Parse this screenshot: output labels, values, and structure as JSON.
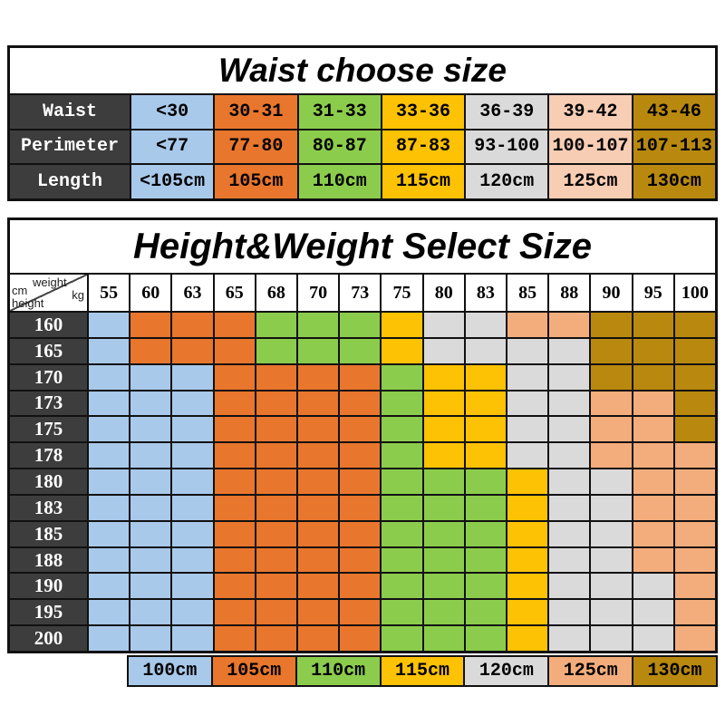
{
  "colors": {
    "blue": "#a9c9ea",
    "orange": "#e8762d",
    "green": "#8ccc4c",
    "yellow": "#fcc203",
    "gray": "#dadada",
    "peach": "#f3ad7c",
    "peach_light": "#f7cdb4",
    "gold": "#b8890e",
    "label_bg": "#3d3d3d",
    "border": "#111111"
  },
  "waist_table": {
    "title": "Waist choose size",
    "column_colors": [
      "blue",
      "orange",
      "green",
      "yellow",
      "gray",
      "peach_light",
      "gold"
    ],
    "rows": [
      {
        "label": "Waist",
        "values": [
          "<30",
          "30-31",
          "31-33",
          "33-36",
          "36-39",
          "39-42",
          "43-46"
        ]
      },
      {
        "label": "Perimeter",
        "values": [
          "<77",
          "77-80",
          "80-87",
          "87-83",
          "93-100",
          "100-107",
          "107-113"
        ]
      },
      {
        "label": "Length",
        "values": [
          "<105cm",
          "105cm",
          "110cm",
          "115cm",
          "120cm",
          "125cm",
          "130cm"
        ]
      }
    ]
  },
  "size_table": {
    "title": "Height&Weight Select Size",
    "corner": {
      "weight": "weight",
      "kg": "kg",
      "cm": "cm",
      "height": "height"
    },
    "weights": [
      "55",
      "60",
      "63",
      "65",
      "68",
      "70",
      "73",
      "75",
      "80",
      "83",
      "85",
      "88",
      "90",
      "95",
      "100"
    ],
    "code_map": {
      "B": "blue",
      "O": "orange",
      "G": "green",
      "Y": "yellow",
      "S": "gray",
      "P": "peach",
      "D": "gold"
    },
    "rows": [
      {
        "height": "160",
        "cells": "BOOOGGGYSSPPDDD"
      },
      {
        "height": "165",
        "cells": "BOOOGGGYSSSSDDD"
      },
      {
        "height": "170",
        "cells": "BBBOOOOGYYSSDDD"
      },
      {
        "height": "173",
        "cells": "BBBOOOOGYYSSPPD"
      },
      {
        "height": "175",
        "cells": "BBBOOOOGYYSSPPD"
      },
      {
        "height": "178",
        "cells": "BBBOOOOGYYSSPPP"
      },
      {
        "height": "180",
        "cells": "BBBOOOOGGGYSSPP"
      },
      {
        "height": "183",
        "cells": "BBBOOOOGGGYSSPP"
      },
      {
        "height": "185",
        "cells": "BBBOOOOGGGYSSPP"
      },
      {
        "height": "188",
        "cells": "BBBOOOOGGGYSSPP"
      },
      {
        "height": "190",
        "cells": "BBBOOOOGGGYSSSP"
      },
      {
        "height": "195",
        "cells": "BBBOOOOGGGYSSSP"
      },
      {
        "height": "200",
        "cells": "BBBOOOOGGGYSSSP"
      }
    ]
  },
  "legend": {
    "items": [
      {
        "label": "100cm",
        "color": "blue"
      },
      {
        "label": "105cm",
        "color": "orange"
      },
      {
        "label": "110cm",
        "color": "green"
      },
      {
        "label": "115cm",
        "color": "yellow"
      },
      {
        "label": "120cm",
        "color": "gray"
      },
      {
        "label": "125cm",
        "color": "peach"
      },
      {
        "label": "130cm",
        "color": "gold"
      }
    ]
  },
  "chart_data": [
    {
      "type": "table",
      "title": "Waist choose size",
      "rows": [
        [
          "Waist",
          "<30",
          "30-31",
          "31-33",
          "33-36",
          "36-39",
          "39-42",
          "43-46"
        ],
        [
          "Perimeter",
          "<77",
          "77-80",
          "80-87",
          "87-83",
          "93-100",
          "100-107",
          "107-113"
        ],
        [
          "Length",
          "<105cm",
          "105cm",
          "110cm",
          "115cm",
          "120cm",
          "125cm",
          "130cm"
        ]
      ]
    },
    {
      "type": "heatmap",
      "title": "Height&Weight Select Size",
      "xlabel": "weight kg",
      "ylabel": "cm height",
      "x": [
        55,
        60,
        63,
        65,
        68,
        70,
        73,
        75,
        80,
        83,
        85,
        88,
        90,
        95,
        100
      ],
      "y": [
        160,
        165,
        170,
        173,
        175,
        178,
        180,
        183,
        185,
        188,
        190,
        195,
        200
      ],
      "legend": [
        "100cm",
        "105cm",
        "110cm",
        "115cm",
        "120cm",
        "125cm",
        "130cm"
      ],
      "cell_size_cm": [
        [
          100,
          105,
          105,
          105,
          110,
          110,
          110,
          115,
          120,
          120,
          125,
          125,
          130,
          130,
          130
        ],
        [
          100,
          105,
          105,
          105,
          110,
          110,
          110,
          115,
          120,
          120,
          120,
          120,
          130,
          130,
          130
        ],
        [
          100,
          100,
          100,
          105,
          105,
          105,
          105,
          110,
          115,
          115,
          120,
          120,
          130,
          130,
          130
        ],
        [
          100,
          100,
          100,
          105,
          105,
          105,
          105,
          110,
          115,
          115,
          120,
          120,
          125,
          125,
          130
        ],
        [
          100,
          100,
          100,
          105,
          105,
          105,
          105,
          110,
          115,
          115,
          120,
          120,
          125,
          125,
          130
        ],
        [
          100,
          100,
          100,
          105,
          105,
          105,
          105,
          110,
          115,
          115,
          120,
          120,
          125,
          125,
          125
        ],
        [
          100,
          100,
          100,
          105,
          105,
          105,
          105,
          110,
          110,
          110,
          115,
          120,
          120,
          125,
          125
        ],
        [
          100,
          100,
          100,
          105,
          105,
          105,
          105,
          110,
          110,
          110,
          115,
          120,
          120,
          125,
          125
        ],
        [
          100,
          100,
          100,
          105,
          105,
          105,
          105,
          110,
          110,
          110,
          115,
          120,
          120,
          125,
          125
        ],
        [
          100,
          100,
          100,
          105,
          105,
          105,
          105,
          110,
          110,
          110,
          115,
          120,
          120,
          125,
          125
        ],
        [
          100,
          100,
          100,
          105,
          105,
          105,
          105,
          110,
          110,
          110,
          115,
          120,
          120,
          120,
          125
        ],
        [
          100,
          100,
          100,
          105,
          105,
          105,
          105,
          110,
          110,
          110,
          115,
          120,
          120,
          120,
          125
        ],
        [
          100,
          100,
          100,
          105,
          105,
          105,
          105,
          110,
          110,
          110,
          115,
          120,
          120,
          120,
          125
        ]
      ]
    }
  ]
}
